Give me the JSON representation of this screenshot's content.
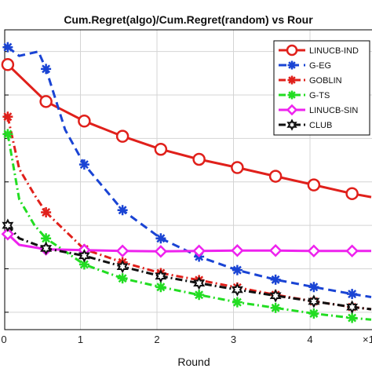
{
  "chart_data": {
    "type": "line",
    "title": "Cum.Regret(algo)/Cum.Regret(random) vs Rour",
    "xlabel": "Round",
    "ylabel": "",
    "xlim": [
      0,
      4.8
    ],
    "ylim": [
      0.36,
      1.05
    ],
    "xticks": [
      0,
      1,
      2,
      3,
      4
    ],
    "xtick_labels": [
      "0",
      "1",
      "2",
      "3",
      "4"
    ],
    "x_multiplier_label": "×1",
    "grid": true,
    "legend_position": "top-right",
    "series": [
      {
        "name": "LINUCB-IND",
        "color": "#e0201b",
        "dash": "solid",
        "marker": "circle",
        "x": [
          0.05,
          0.55,
          1.05,
          1.55,
          2.05,
          2.55,
          3.05,
          3.55,
          4.05,
          4.55,
          4.8
        ],
        "y": [
          0.97,
          0.885,
          0.84,
          0.805,
          0.775,
          0.752,
          0.733,
          0.713,
          0.693,
          0.673,
          0.665
        ],
        "marker_indices": [
          0,
          1,
          2,
          3,
          4,
          5,
          6,
          7,
          8,
          9
        ]
      },
      {
        "name": "G-EG",
        "color": "#1a44d4",
        "dash": "dashed",
        "marker": "star",
        "x": [
          0.05,
          0.2,
          0.45,
          0.55,
          0.8,
          1.05,
          1.55,
          2.05,
          2.55,
          3.05,
          3.55,
          4.05,
          4.55,
          4.8
        ],
        "y": [
          1.01,
          0.99,
          1.0,
          0.96,
          0.82,
          0.74,
          0.635,
          0.57,
          0.528,
          0.497,
          0.475,
          0.458,
          0.442,
          0.435
        ],
        "marker_indices": [
          0,
          3,
          5,
          6,
          7,
          8,
          9,
          10,
          11,
          12
        ]
      },
      {
        "name": "GOBLIN",
        "color": "#e0201b",
        "dash": "dashdot",
        "marker": "star",
        "x": [
          0.05,
          0.2,
          0.4,
          0.55,
          1.05,
          1.55,
          2.05,
          2.55,
          3.05,
          3.55,
          4.05,
          4.55,
          4.8
        ],
        "y": [
          0.85,
          0.73,
          0.67,
          0.63,
          0.545,
          0.515,
          0.49,
          0.474,
          0.457,
          0.44,
          0.425,
          0.412,
          0.407
        ],
        "marker_indices": [
          0,
          3,
          4,
          5,
          6,
          7,
          8,
          9,
          10,
          11
        ]
      },
      {
        "name": "G-TS",
        "color": "#22dd22",
        "dash": "dashdot",
        "marker": "star",
        "x": [
          0.05,
          0.2,
          0.4,
          0.55,
          1.05,
          1.55,
          2.05,
          2.55,
          3.05,
          3.55,
          4.05,
          4.55,
          4.8
        ],
        "y": [
          0.81,
          0.66,
          0.6,
          0.57,
          0.51,
          0.478,
          0.458,
          0.44,
          0.423,
          0.41,
          0.397,
          0.387,
          0.383
        ],
        "marker_indices": [
          0,
          3,
          4,
          5,
          6,
          7,
          8,
          9,
          10,
          11
        ]
      },
      {
        "name": "LINUCB-SIN",
        "color": "#ee22ee",
        "dash": "solid",
        "marker": "diamond",
        "x": [
          0.05,
          0.2,
          0.55,
          1.05,
          1.55,
          2.05,
          2.55,
          3.05,
          3.55,
          4.05,
          4.55,
          4.8
        ],
        "y": [
          0.58,
          0.555,
          0.545,
          0.543,
          0.541,
          0.54,
          0.541,
          0.542,
          0.542,
          0.541,
          0.541,
          0.541
        ],
        "marker_indices": [
          0,
          2,
          3,
          4,
          5,
          6,
          7,
          8,
          9,
          10
        ]
      },
      {
        "name": "CLUB",
        "color": "#111111",
        "dash": "dashdot",
        "marker": "hexagram",
        "x": [
          0.05,
          0.2,
          0.55,
          1.05,
          1.55,
          2.05,
          2.55,
          3.05,
          3.55,
          4.05,
          4.55,
          4.8
        ],
        "y": [
          0.6,
          0.57,
          0.547,
          0.53,
          0.505,
          0.483,
          0.467,
          0.452,
          0.438,
          0.425,
          0.412,
          0.407
        ],
        "marker_indices": [
          0,
          2,
          3,
          4,
          5,
          6,
          7,
          8,
          9,
          10
        ]
      }
    ]
  }
}
